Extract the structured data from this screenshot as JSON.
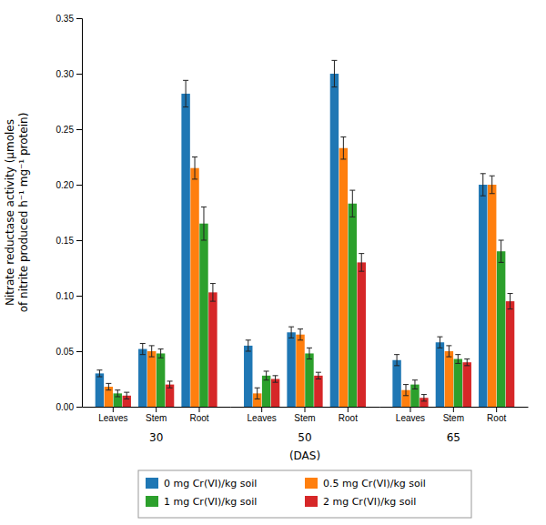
{
  "chart_data": {
    "type": "bar",
    "ylabel": "Nitrate reductase activity (μmoles\nof nitrite produced h⁻¹ mg⁻¹ protein)",
    "xlabel": "(DAS)",
    "categories": [
      "Leaves",
      "Stem",
      "Root",
      "Leaves",
      "Stem",
      "Root",
      "Leaves",
      "Stem",
      "Root"
    ],
    "category_groups": [
      "30",
      "50",
      "65"
    ],
    "series": [
      {
        "name": "0 mg Cr(VI)/kg soil",
        "values": [
          0.03,
          0.052,
          0.282,
          0.055,
          0.067,
          0.3,
          0.042,
          0.058,
          0.2
        ],
        "errors": [
          0.003,
          0.005,
          0.012,
          0.005,
          0.005,
          0.012,
          0.005,
          0.005,
          0.01
        ]
      },
      {
        "name": "0.5 mg Cr(VI)/kg soil",
        "values": [
          0.018,
          0.05,
          0.215,
          0.012,
          0.065,
          0.233,
          0.015,
          0.05,
          0.2
        ],
        "errors": [
          0.003,
          0.005,
          0.01,
          0.005,
          0.005,
          0.01,
          0.005,
          0.005,
          0.008
        ]
      },
      {
        "name": "1 mg Cr(VI)/kg soil",
        "values": [
          0.012,
          0.048,
          0.165,
          0.028,
          0.048,
          0.183,
          0.02,
          0.043,
          0.14
        ],
        "errors": [
          0.003,
          0.004,
          0.015,
          0.004,
          0.005,
          0.012,
          0.004,
          0.004,
          0.01
        ]
      },
      {
        "name": "2 mg Cr(VI)/kg soil",
        "values": [
          0.01,
          0.02,
          0.103,
          0.025,
          0.028,
          0.13,
          0.008,
          0.04,
          0.095
        ],
        "errors": [
          0.003,
          0.003,
          0.008,
          0.003,
          0.003,
          0.008,
          0.003,
          0.003,
          0.007
        ]
      }
    ],
    "ylim": [
      0,
      0.35
    ],
    "yticks": [
      {
        "value": 0,
        "label": "0.00"
      },
      0.05,
      {
        "value": 0.1,
        "label": "0.10"
      },
      0.15,
      {
        "value": 0.2,
        "label": "0.20"
      },
      0.25,
      {
        "value": 0.3,
        "label": "0.30"
      },
      0.35
    ],
    "grid": false,
    "legend": "bottom"
  }
}
